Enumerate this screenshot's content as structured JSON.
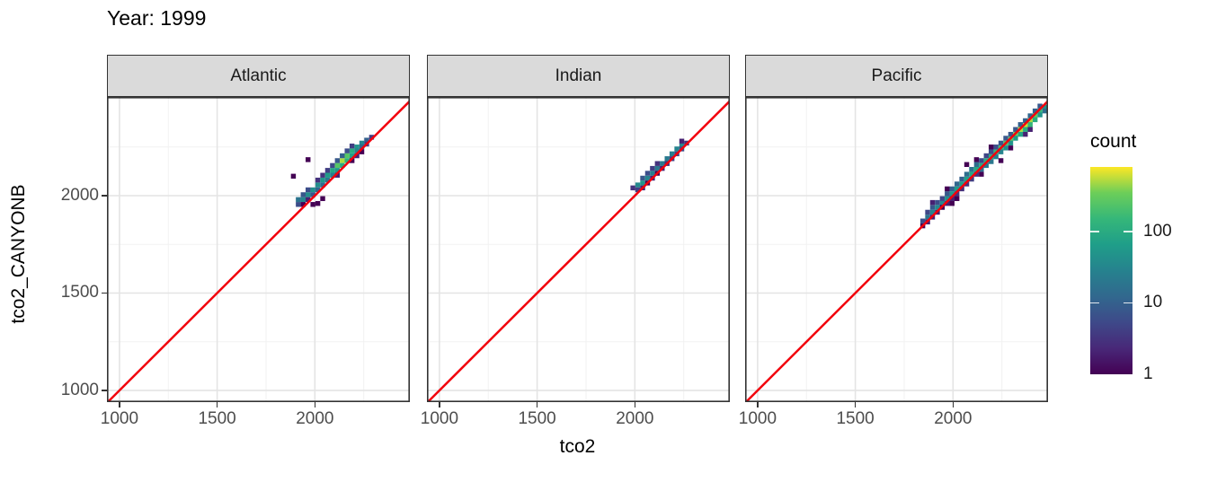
{
  "title": "Year: 1999",
  "axes": {
    "x_title": "tco2",
    "y_title": "tco2_CANYONB",
    "x_ticks": [
      1000,
      1500,
      2000
    ],
    "y_ticks": [
      1000,
      1500,
      2000
    ],
    "minor_ticks": [
      1250,
      1750,
      2250
    ],
    "x_domain": [
      936,
      2486
    ],
    "y_domain": [
      940,
      2507
    ]
  },
  "legend": {
    "title": "count",
    "ticks": [
      1,
      10,
      100
    ],
    "max": 800,
    "palette": [
      "#440154",
      "#482878",
      "#3E4989",
      "#31688E",
      "#26828E",
      "#1F9E89",
      "#35B779",
      "#6CCE59",
      "#FDE725"
    ]
  },
  "colors": {
    "abline": "#F2000C",
    "strip_fill": "#DADADA",
    "panel_border": "#333333",
    "grid_major": "#E4E4E4",
    "grid_minor": "#F2F2F2",
    "axis_text": "#4D4D4D",
    "tick_mark": "#333333",
    "title_text": "#000000"
  },
  "chart_data": {
    "type": "heatmap",
    "subtype": "bin2d-count",
    "title": "Year: 1999",
    "xlabel": "tco2",
    "ylabel": "tco2_CANYONB",
    "xlim": [
      936,
      2486
    ],
    "ylim": [
      940,
      2507
    ],
    "binwidth": 25,
    "legend_title": "count",
    "legend_scale": "log10",
    "legend_ticks": [
      1,
      10,
      100
    ],
    "reference_line": {
      "slope": 1,
      "intercept": 0,
      "color": "#F2000C"
    },
    "facets": [
      {
        "label": "Atlantic",
        "bins": [
          [
            1915,
            1955,
            6
          ],
          [
            1915,
            1980,
            18
          ],
          [
            1940,
            1980,
            30
          ],
          [
            1940,
            2005,
            8
          ],
          [
            1940,
            1955,
            1
          ],
          [
            1965,
            2005,
            40
          ],
          [
            1965,
            2030,
            6
          ],
          [
            1965,
            1980,
            2
          ],
          [
            1965,
            2185,
            1
          ],
          [
            1990,
            2030,
            40
          ],
          [
            1990,
            2005,
            8
          ],
          [
            1990,
            1955,
            1
          ],
          [
            2015,
            2055,
            40
          ],
          [
            2015,
            2030,
            12
          ],
          [
            2015,
            2080,
            3
          ],
          [
            2015,
            1960,
            1
          ],
          [
            2040,
            2080,
            50
          ],
          [
            2040,
            2055,
            15
          ],
          [
            2040,
            2105,
            3
          ],
          [
            2040,
            1985,
            1
          ],
          [
            2065,
            2105,
            60
          ],
          [
            2065,
            2080,
            20
          ],
          [
            2065,
            2130,
            4
          ],
          [
            2090,
            2130,
            80
          ],
          [
            2090,
            2105,
            25
          ],
          [
            2090,
            2155,
            5
          ],
          [
            2115,
            2155,
            250
          ],
          [
            2115,
            2130,
            50
          ],
          [
            2115,
            2180,
            8
          ],
          [
            2115,
            2105,
            2
          ],
          [
            2140,
            2180,
            500
          ],
          [
            2140,
            2155,
            100
          ],
          [
            2140,
            2205,
            10
          ],
          [
            2165,
            2205,
            250
          ],
          [
            2165,
            2180,
            120
          ],
          [
            2165,
            2230,
            6
          ],
          [
            2190,
            2230,
            100
          ],
          [
            2190,
            2205,
            70
          ],
          [
            2190,
            2255,
            4
          ],
          [
            2190,
            2180,
            1
          ],
          [
            2215,
            2250,
            50
          ],
          [
            2215,
            2230,
            30
          ],
          [
            2215,
            2205,
            2
          ],
          [
            2240,
            2270,
            30
          ],
          [
            2240,
            2250,
            12
          ],
          [
            2240,
            2225,
            1
          ],
          [
            2265,
            2285,
            10
          ],
          [
            2265,
            2265,
            4
          ],
          [
            2290,
            2300,
            4
          ],
          [
            1890,
            2100,
            1
          ]
        ]
      },
      {
        "label": "Indian",
        "bins": [
          [
            1990,
            2040,
            3
          ],
          [
            2015,
            2055,
            35
          ],
          [
            2015,
            2030,
            4
          ],
          [
            2040,
            2065,
            45
          ],
          [
            2040,
            2090,
            8
          ],
          [
            2040,
            2040,
            2
          ],
          [
            2065,
            2090,
            30
          ],
          [
            2065,
            2115,
            6
          ],
          [
            2065,
            2065,
            1
          ],
          [
            2090,
            2115,
            25
          ],
          [
            2090,
            2140,
            4
          ],
          [
            2090,
            2090,
            2
          ],
          [
            2115,
            2140,
            20
          ],
          [
            2115,
            2165,
            3
          ],
          [
            2115,
            2115,
            1
          ],
          [
            2140,
            2165,
            20
          ],
          [
            2140,
            2140,
            2
          ],
          [
            2165,
            2190,
            22
          ],
          [
            2165,
            2165,
            3
          ],
          [
            2190,
            2215,
            25
          ],
          [
            2190,
            2190,
            4
          ],
          [
            2215,
            2240,
            30
          ],
          [
            2215,
            2215,
            5
          ],
          [
            2240,
            2255,
            30
          ],
          [
            2240,
            2240,
            6
          ],
          [
            2240,
            2280,
            2
          ],
          [
            2265,
            2270,
            3
          ]
        ]
      },
      {
        "label": "Pacific",
        "bins": [
          [
            1845,
            1870,
            6
          ],
          [
            1845,
            1845,
            1
          ],
          [
            1870,
            1890,
            18
          ],
          [
            1870,
            1915,
            5
          ],
          [
            1870,
            1865,
            2
          ],
          [
            1895,
            1915,
            30
          ],
          [
            1895,
            1940,
            8
          ],
          [
            1895,
            1890,
            2
          ],
          [
            1895,
            1965,
            2
          ],
          [
            1920,
            1940,
            35
          ],
          [
            1920,
            1965,
            6
          ],
          [
            1920,
            1915,
            2
          ],
          [
            1945,
            1960,
            30
          ],
          [
            1945,
            1985,
            5
          ],
          [
            1945,
            1940,
            1
          ],
          [
            1970,
            1985,
            40
          ],
          [
            1970,
            2010,
            8
          ],
          [
            1970,
            1960,
            2
          ],
          [
            1970,
            2035,
            1
          ],
          [
            1995,
            2010,
            50
          ],
          [
            1995,
            2035,
            10
          ],
          [
            1995,
            1985,
            2
          ],
          [
            1995,
            1960,
            1
          ],
          [
            2020,
            2035,
            60
          ],
          [
            2020,
            2060,
            12
          ],
          [
            2020,
            2010,
            3
          ],
          [
            2020,
            1985,
            1
          ],
          [
            2045,
            2060,
            60
          ],
          [
            2045,
            2085,
            10
          ],
          [
            2045,
            2035,
            3
          ],
          [
            2070,
            2085,
            70
          ],
          [
            2070,
            2110,
            15
          ],
          [
            2070,
            2060,
            3
          ],
          [
            2070,
            2160,
            1
          ],
          [
            2095,
            2110,
            80
          ],
          [
            2095,
            2135,
            18
          ],
          [
            2095,
            2085,
            4
          ],
          [
            2120,
            2135,
            90
          ],
          [
            2120,
            2160,
            15
          ],
          [
            2120,
            2110,
            3
          ],
          [
            2120,
            2185,
            1
          ],
          [
            2145,
            2155,
            90
          ],
          [
            2145,
            2135,
            15
          ],
          [
            2145,
            2180,
            5
          ],
          [
            2145,
            2110,
            1
          ],
          [
            2170,
            2180,
            100
          ],
          [
            2170,
            2155,
            20
          ],
          [
            2170,
            2205,
            5
          ],
          [
            2195,
            2200,
            110
          ],
          [
            2195,
            2175,
            20
          ],
          [
            2195,
            2225,
            6
          ],
          [
            2195,
            2250,
            1
          ],
          [
            2220,
            2225,
            130
          ],
          [
            2220,
            2200,
            25
          ],
          [
            2220,
            2250,
            6
          ],
          [
            2245,
            2245,
            180
          ],
          [
            2245,
            2225,
            30
          ],
          [
            2245,
            2270,
            8
          ],
          [
            2245,
            2180,
            1
          ],
          [
            2270,
            2270,
            220
          ],
          [
            2270,
            2245,
            40
          ],
          [
            2270,
            2295,
            8
          ],
          [
            2295,
            2290,
            280
          ],
          [
            2295,
            2270,
            50
          ],
          [
            2295,
            2315,
            8
          ],
          [
            2295,
            2245,
            1
          ],
          [
            2320,
            2315,
            350
          ],
          [
            2320,
            2295,
            60
          ],
          [
            2320,
            2340,
            8
          ],
          [
            2345,
            2340,
            500
          ],
          [
            2345,
            2315,
            80
          ],
          [
            2345,
            2365,
            10
          ],
          [
            2370,
            2360,
            600
          ],
          [
            2370,
            2340,
            100
          ],
          [
            2370,
            2385,
            10
          ],
          [
            2370,
            2315,
            2
          ],
          [
            2395,
            2385,
            500
          ],
          [
            2395,
            2365,
            150
          ],
          [
            2395,
            2410,
            12
          ],
          [
            2395,
            2340,
            2
          ],
          [
            2420,
            2410,
            300
          ],
          [
            2420,
            2390,
            100
          ],
          [
            2420,
            2435,
            10
          ],
          [
            2445,
            2435,
            150
          ],
          [
            2445,
            2415,
            50
          ],
          [
            2445,
            2460,
            8
          ],
          [
            2470,
            2455,
            50
          ],
          [
            2470,
            2435,
            15
          ]
        ]
      }
    ]
  }
}
